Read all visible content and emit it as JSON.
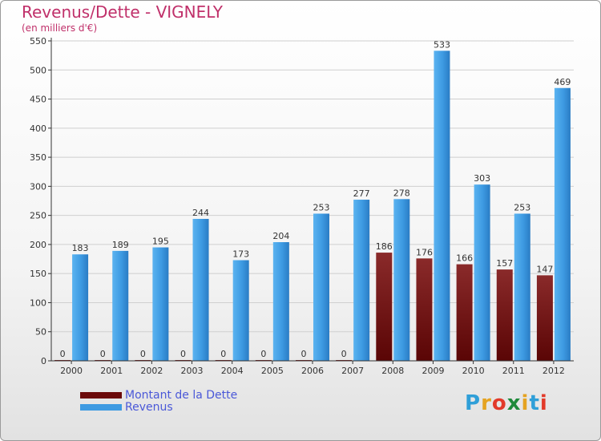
{
  "header": {
    "title": "Revenus/Dette - VIGNELY",
    "subtitle": "(en milliers d'€)"
  },
  "colors": {
    "dette": "#6b0a0a",
    "revenus": "#3d9ae2",
    "axis": "#333333",
    "grid": "#cfcfcf",
    "title": "#c0306a",
    "legend_text": "#4a58d8"
  },
  "legend": {
    "items": [
      {
        "label": "Montant de la Dette",
        "color": "#6b0a0a"
      },
      {
        "label": "Revenus",
        "color": "#3d9ae2"
      }
    ]
  },
  "logo": {
    "text": "Proxiti",
    "letters": [
      "P",
      "r",
      "o",
      "x",
      "i",
      "t",
      "i"
    ],
    "colors": [
      "#2f9fd8",
      "#e5a321",
      "#e23a2a",
      "#1f8a3a",
      "#e5a321",
      "#2f9fd8",
      "#e23a2a"
    ]
  },
  "chart_data": {
    "type": "bar",
    "title": "Revenus/Dette - VIGNELY",
    "ylabel": "(en milliers d'€)",
    "categories": [
      "2000",
      "2001",
      "2002",
      "2003",
      "2004",
      "2005",
      "2006",
      "2007",
      "2008",
      "2009",
      "2010",
      "2011",
      "2012"
    ],
    "series": [
      {
        "name": "Montant de la Dette",
        "values": [
          0,
          0,
          0,
          0,
          0,
          0,
          0,
          0,
          186,
          176,
          166,
          157,
          147
        ]
      },
      {
        "name": "Revenus",
        "values": [
          183,
          189,
          195,
          244,
          173,
          204,
          253,
          277,
          278,
          533,
          303,
          253,
          469
        ]
      }
    ],
    "ylim": [
      0,
      550
    ],
    "yticks": [
      0,
      50,
      100,
      150,
      200,
      250,
      300,
      350,
      400,
      450,
      500,
      550
    ],
    "grid": true,
    "legend_position": "bottom-left"
  }
}
